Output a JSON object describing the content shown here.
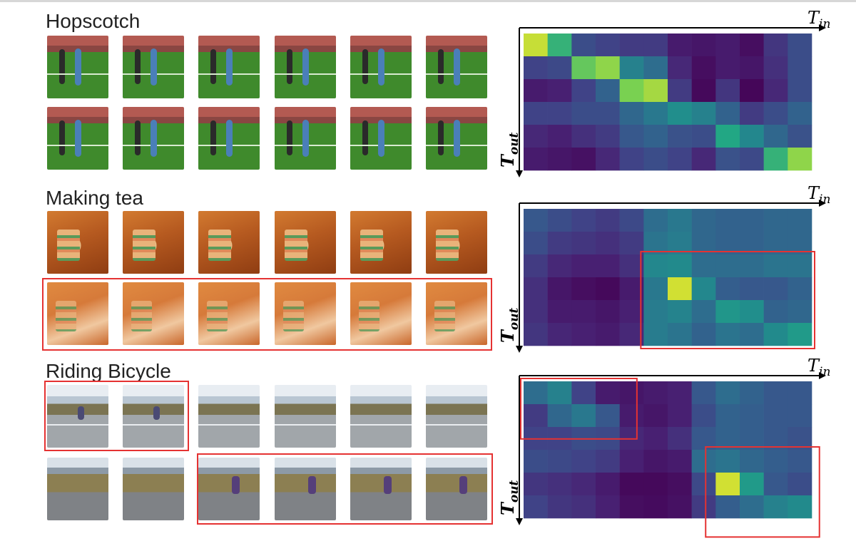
{
  "rows": [
    {
      "title": "Hopscotch",
      "frame_style": "hop"
    },
    {
      "title": "Making tea",
      "frame_style": "tea"
    },
    {
      "title": "Riding Bicycle",
      "frame_style": "bike"
    }
  ],
  "axis": {
    "x_main": "T",
    "x_sub": "in",
    "y_main": "T",
    "y_sub": "out"
  },
  "colors": {
    "highlight_box": "#e53232",
    "colormap": "viridis"
  },
  "chart_data": [
    {
      "type": "heatmap",
      "title": "",
      "xlabel": "T_in",
      "ylabel": "T_out",
      "values": [
        [
          0.95,
          0.78,
          0.3,
          0.25,
          0.22,
          0.22,
          0.1,
          0.08,
          0.1,
          0.05,
          0.2,
          0.3
        ],
        [
          0.25,
          0.28,
          0.85,
          0.9,
          0.55,
          0.45,
          0.15,
          0.05,
          0.1,
          0.08,
          0.18,
          0.3
        ],
        [
          0.1,
          0.12,
          0.25,
          0.4,
          0.88,
          0.92,
          0.22,
          0.03,
          0.2,
          0.02,
          0.15,
          0.3
        ],
        [
          0.25,
          0.25,
          0.3,
          0.3,
          0.42,
          0.5,
          0.62,
          0.55,
          0.4,
          0.22,
          0.3,
          0.4
        ],
        [
          0.15,
          0.12,
          0.18,
          0.22,
          0.35,
          0.4,
          0.32,
          0.3,
          0.75,
          0.58,
          0.42,
          0.32
        ],
        [
          0.1,
          0.08,
          0.06,
          0.15,
          0.25,
          0.3,
          0.25,
          0.15,
          0.32,
          0.28,
          0.78,
          0.9
        ]
      ]
    },
    {
      "type": "heatmap",
      "title": "",
      "xlabel": "T_in",
      "ylabel": "T_out",
      "values": [
        [
          0.35,
          0.3,
          0.25,
          0.22,
          0.28,
          0.45,
          0.5,
          0.42,
          0.4,
          0.4,
          0.42,
          0.42
        ],
        [
          0.3,
          0.22,
          0.2,
          0.18,
          0.22,
          0.48,
          0.52,
          0.42,
          0.4,
          0.4,
          0.42,
          0.42
        ],
        [
          0.22,
          0.15,
          0.12,
          0.12,
          0.18,
          0.58,
          0.6,
          0.45,
          0.45,
          0.45,
          0.48,
          0.48
        ],
        [
          0.18,
          0.08,
          0.05,
          0.03,
          0.1,
          0.5,
          0.96,
          0.58,
          0.38,
          0.35,
          0.35,
          0.4
        ],
        [
          0.18,
          0.1,
          0.1,
          0.08,
          0.12,
          0.52,
          0.56,
          0.45,
          0.66,
          0.62,
          0.4,
          0.42
        ],
        [
          0.2,
          0.14,
          0.12,
          0.1,
          0.15,
          0.52,
          0.48,
          0.4,
          0.48,
          0.45,
          0.6,
          0.68
        ]
      ]
    },
    {
      "type": "heatmap",
      "title": "",
      "xlabel": "T_in",
      "ylabel": "T_out",
      "values": [
        [
          0.45,
          0.55,
          0.25,
          0.1,
          0.08,
          0.1,
          0.12,
          0.35,
          0.45,
          0.4,
          0.35,
          0.35
        ],
        [
          0.22,
          0.42,
          0.5,
          0.35,
          0.1,
          0.08,
          0.12,
          0.3,
          0.4,
          0.38,
          0.35,
          0.35
        ],
        [
          0.25,
          0.25,
          0.3,
          0.28,
          0.15,
          0.12,
          0.18,
          0.35,
          0.4,
          0.38,
          0.35,
          0.32
        ],
        [
          0.3,
          0.28,
          0.25,
          0.22,
          0.12,
          0.08,
          0.1,
          0.45,
          0.48,
          0.42,
          0.38,
          0.35
        ],
        [
          0.2,
          0.18,
          0.15,
          0.1,
          0.03,
          0.03,
          0.05,
          0.28,
          0.96,
          0.68,
          0.35,
          0.3
        ],
        [
          0.25,
          0.2,
          0.18,
          0.12,
          0.05,
          0.04,
          0.06,
          0.22,
          0.38,
          0.45,
          0.55,
          0.6
        ]
      ]
    }
  ]
}
